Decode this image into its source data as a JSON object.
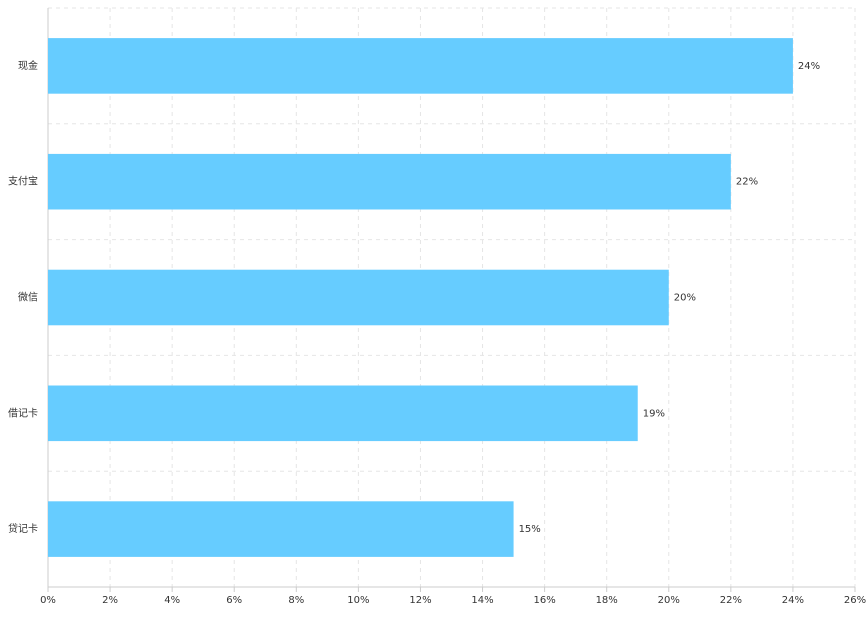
{
  "chart_data": {
    "type": "bar",
    "orientation": "horizontal",
    "categories": [
      "现金",
      "支付宝",
      "微信",
      "借记卡",
      "贷记卡"
    ],
    "values": [
      24,
      22,
      20,
      19,
      15
    ],
    "value_labels": [
      "24%",
      "22%",
      "20%",
      "19%",
      "15%"
    ],
    "color": "#66ccff",
    "xlim": [
      0,
      26
    ],
    "xticks": [
      {
        "value": 0,
        "label": "0%"
      },
      {
        "value": 2,
        "label": "2%"
      },
      {
        "value": 4,
        "label": "4%"
      },
      {
        "value": 6,
        "label": "6%"
      },
      {
        "value": 8,
        "label": "8%"
      },
      {
        "value": 10,
        "label": "10%"
      },
      {
        "value": 12,
        "label": "12%"
      },
      {
        "value": 14,
        "label": "14%"
      },
      {
        "value": 16,
        "label": "16%"
      },
      {
        "value": 18,
        "label": "18%"
      },
      {
        "value": 20,
        "label": "20%"
      },
      {
        "value": 22,
        "label": "22%"
      },
      {
        "value": 24,
        "label": "24%"
      },
      {
        "value": 26,
        "label": "26%"
      }
    ],
    "grid": true
  }
}
